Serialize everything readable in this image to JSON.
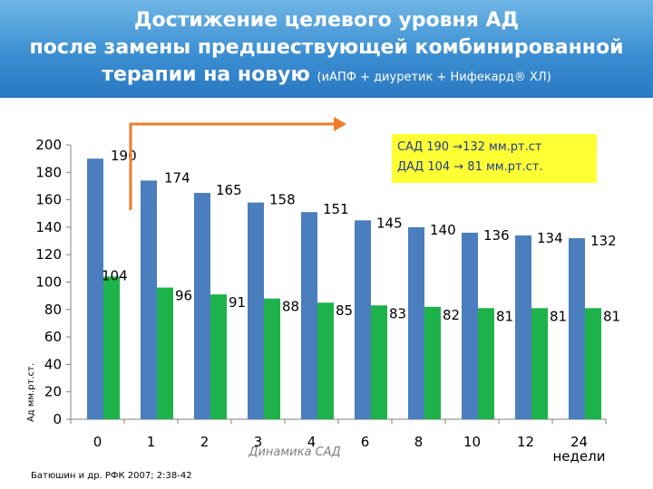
{
  "header": {
    "title_line1": "Достижение целевого уровня АД",
    "title_line2": "после замены предшествующей комбинированной",
    "title_line3": "терапии на новую",
    "title_line3_sub": "(иАПФ + диуретик + Нифекард® ХЛ)"
  },
  "callout": {
    "line1": "САД 190 →132 мм.рт.ст",
    "line2": "ДАД 104 → 81 мм.рт.ст."
  },
  "source": "Батюшин и др. РФК 2007; 2:38-42",
  "colors": {
    "header_bg": "#3c8fd2",
    "sad_bar": "#4a7ebe",
    "dad_bar": "#1db34a",
    "arrow": "#f07d2a",
    "callout_bg": "#ffff33",
    "callout_text": "#1f3d8f"
  },
  "chart_data": {
    "type": "bar",
    "categories": [
      "0",
      "1",
      "2",
      "3",
      "4",
      "6",
      "8",
      "10",
      "12",
      "24"
    ],
    "series": [
      {
        "values": [
          190,
          174,
          165,
          158,
          151,
          145,
          140,
          136,
          134,
          132
        ]
      },
      {
        "values": [
          104,
          96,
          91,
          88,
          85,
          83,
          82,
          81,
          81,
          81
        ]
      }
    ],
    "ylabel": "Ад мм.рт.ст.",
    "xlabel": "Динамика САД",
    "x_unit_label": "недели",
    "ylim": [
      0,
      200
    ],
    "yticks": [
      0,
      20,
      40,
      60,
      80,
      100,
      120,
      140,
      160,
      180,
      200
    ],
    "grid": false,
    "data_labels": true
  }
}
